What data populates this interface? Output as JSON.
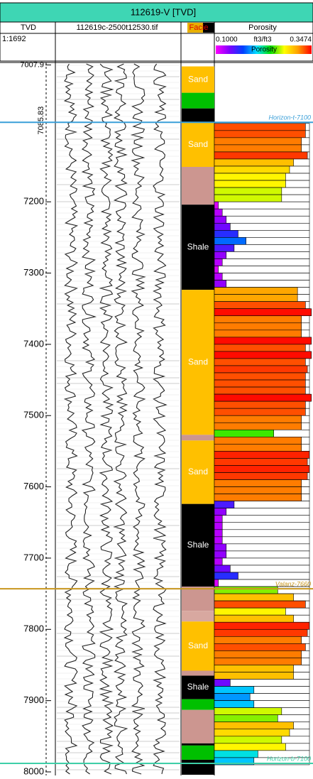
{
  "header": {
    "title": "112619-V [TVD]",
    "depth_title": "TVD",
    "scale": "1:1692",
    "image_title": "112619c-2500t12530.tif",
    "facies_title": "Facie",
    "porosity_title": "Porosity",
    "porosity_unit": "ft3/ft3",
    "colorbar_label": "Porosity"
  },
  "depth_axis": {
    "top": 7007.9,
    "top_label": "7007.9",
    "marker": 7085.83,
    "marker_label": "7085.83",
    "lim": [
      7004.5,
      8005
    ],
    "ticks": [
      7200,
      7300,
      7400,
      7500,
      7600,
      7700,
      7800,
      7900,
      8000
    ]
  },
  "facies": [
    {
      "name": "Sand",
      "top": 7010,
      "base": 7047,
      "color": "#ffc000"
    },
    {
      "name": null,
      "top": 7047,
      "base": 7069,
      "color": "#00c000"
    },
    {
      "name": null,
      "top": 7069,
      "base": 7088.5,
      "color": "#000000"
    },
    {
      "name": "Sand",
      "top": 7088.5,
      "base": 7151,
      "color": "#ffc000"
    },
    {
      "name": null,
      "top": 7151,
      "base": 7204,
      "color": "#cc9690"
    },
    {
      "name": "Shale",
      "top": 7204,
      "base": 7323.5,
      "color": "#000000"
    },
    {
      "name": "Sand",
      "top": 7323.5,
      "base": 7527,
      "color": "#ffc000"
    },
    {
      "name": null,
      "top": 7527,
      "base": 7535,
      "color": "#cc9690"
    },
    {
      "name": "Sand",
      "top": 7535,
      "base": 7624,
      "color": "#ffc000"
    },
    {
      "name": "Shale",
      "top": 7624,
      "base": 7740,
      "color": "#000000"
    },
    {
      "name": null,
      "top": 7740,
      "base": 7774,
      "color": "#cc9690"
    },
    {
      "name": null,
      "top": 7774,
      "base": 7789,
      "color": "#d8a8a0"
    },
    {
      "name": "Sand",
      "top": 7789,
      "base": 7858,
      "color": "#ffc000"
    },
    {
      "name": null,
      "top": 7858,
      "base": 7865,
      "color": "#cc9690"
    },
    {
      "name": "Shale",
      "top": 7865,
      "base": 7898,
      "color": "#000000"
    },
    {
      "name": null,
      "top": 7898,
      "base": 7913,
      "color": "#00c000"
    },
    {
      "name": null,
      "top": 7913,
      "base": 7960,
      "color": "#cc9690"
    },
    {
      "name": null,
      "top": 7960,
      "base": 7963,
      "color": "#000000"
    },
    {
      "name": null,
      "top": 7963,
      "base": 7983,
      "color": "#00c000"
    },
    {
      "name": null,
      "top": 7983,
      "base": 8004,
      "color": "#000000"
    }
  ],
  "porosity": {
    "lim": [
      0.1,
      0.3474
    ],
    "min_label": "0.1000",
    "max_label": "0.3474",
    "thickness": 10,
    "colormap": [
      "#ff00ff",
      "#8000ff",
      "#0040ff",
      "#00e0ff",
      "#00e000",
      "#ffff00",
      "#ffa000",
      "#ff0000"
    ],
    "depths": [
      7090,
      7100,
      7110,
      7120,
      7130,
      7140,
      7150,
      7160,
      7170,
      7180,
      7190,
      7200,
      7210,
      7220,
      7230,
      7240,
      7250,
      7260,
      7270,
      7280,
      7290,
      7300,
      7310,
      7320,
      7330,
      7340,
      7350,
      7360,
      7370,
      7380,
      7390,
      7400,
      7410,
      7420,
      7430,
      7440,
      7450,
      7460,
      7470,
      7480,
      7490,
      7500,
      7510,
      7520,
      7530,
      7540,
      7550,
      7560,
      7570,
      7580,
      7590,
      7600,
      7610,
      7620,
      7630,
      7640,
      7650,
      7660,
      7670,
      7680,
      7690,
      7700,
      7710,
      7720,
      7730,
      7740,
      7750,
      7760,
      7770,
      7780,
      7790,
      7800,
      7810,
      7820,
      7830,
      7840,
      7850,
      7860,
      7870,
      7880,
      7890,
      7900,
      7910,
      7920,
      7930,
      7940,
      7950,
      7960,
      7970,
      7980
    ],
    "values": [
      0.33,
      0.33,
      0.32,
      0.32,
      0.335,
      0.3,
      0.29,
      0.28,
      0.28,
      0.27,
      0.27,
      0.11,
      0.12,
      0.13,
      0.14,
      0.16,
      0.18,
      0.15,
      0.13,
      0.12,
      0.11,
      0.12,
      0.13,
      0.31,
      0.31,
      0.33,
      0.345,
      0.32,
      0.32,
      0.32,
      0.345,
      0.33,
      0.345,
      0.33,
      0.335,
      0.33,
      0.33,
      0.33,
      0.345,
      0.33,
      0.33,
      0.32,
      0.32,
      0.25,
      0.32,
      0.32,
      0.34,
      0.335,
      0.34,
      0.335,
      0.32,
      0.32,
      0.32,
      0.15,
      0.13,
      0.12,
      0.12,
      0.12,
      0.12,
      0.13,
      0.13,
      0.12,
      0.14,
      0.16,
      0.11,
      0.26,
      0.3,
      0.33,
      0.28,
      0.3,
      0.34,
      0.335,
      0.32,
      0.33,
      0.32,
      0.32,
      0.3,
      0.3,
      0.14,
      0.2,
      0.19,
      0.2,
      0.27,
      0.26,
      0.3,
      0.29,
      0.27,
      0.28,
      0.21,
      0.2
    ]
  },
  "horizons": [
    {
      "name": "Horizon-t-7100",
      "depth": 7088.5,
      "color": "#3a9fd8"
    },
    {
      "name": "Valanz-7660",
      "depth": 7743,
      "color": "#c8961e"
    },
    {
      "name": "Horizon-b-7100",
      "depth": 7988,
      "color": "#3ecfa8"
    }
  ]
}
